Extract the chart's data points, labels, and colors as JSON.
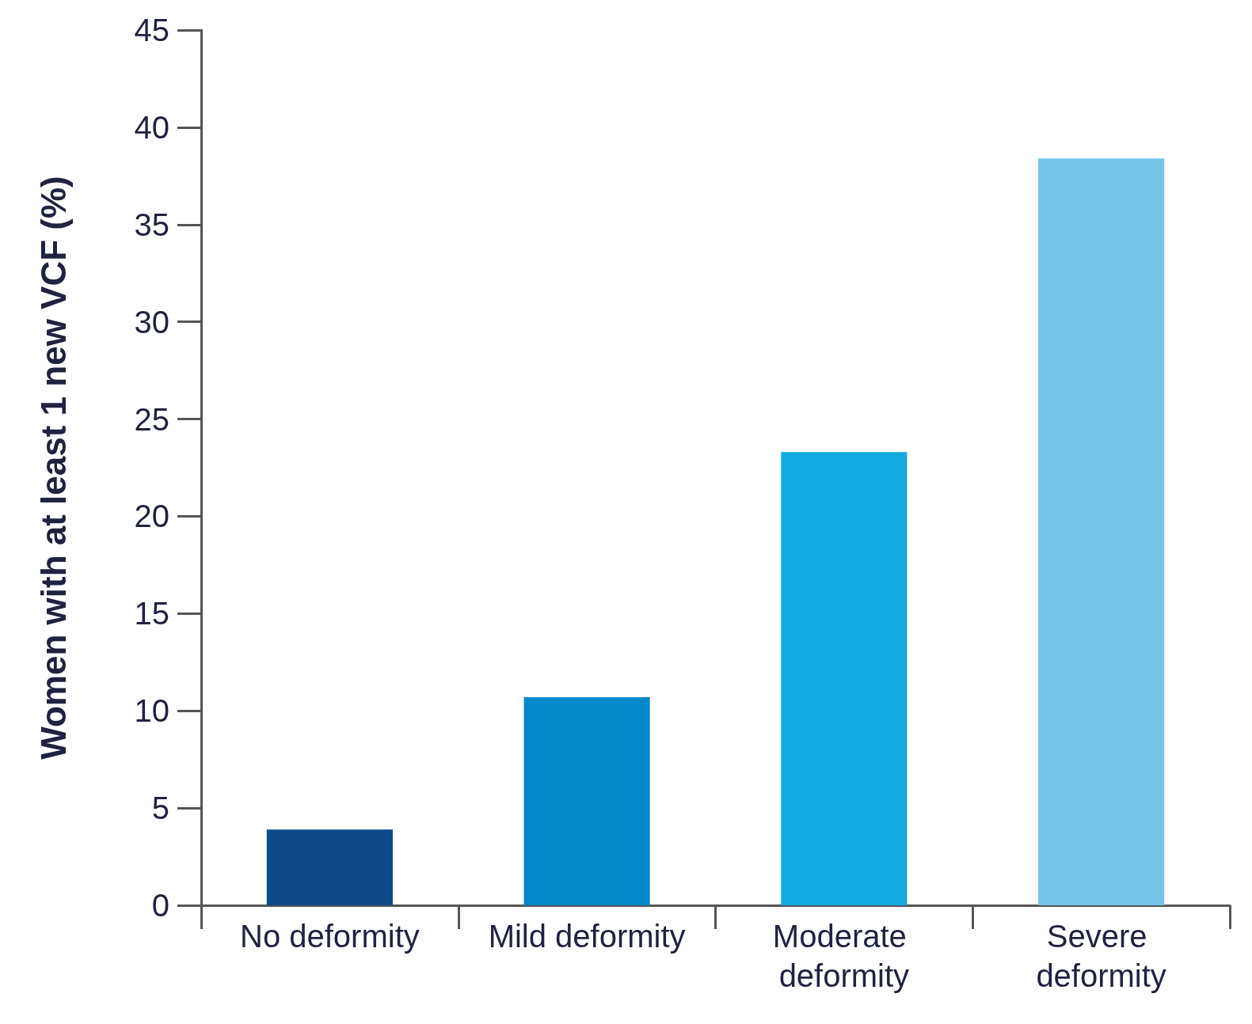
{
  "chart_data": {
    "type": "bar",
    "ylabel": "Women with at least 1 new VCF (%)",
    "categories": [
      "No deformity",
      "Mild deformity",
      "Moderate deformity",
      "Severe deformity"
    ],
    "values": [
      3.9,
      10.7,
      23.3,
      38.4
    ],
    "colors": [
      "#0d4a87",
      "#0388c9",
      "#12aae1",
      "#74c4ea"
    ],
    "ylim": [
      0,
      45
    ],
    "yticks": [
      0,
      5,
      10,
      15,
      20,
      25,
      30,
      35,
      40,
      45
    ],
    "grid": false
  }
}
